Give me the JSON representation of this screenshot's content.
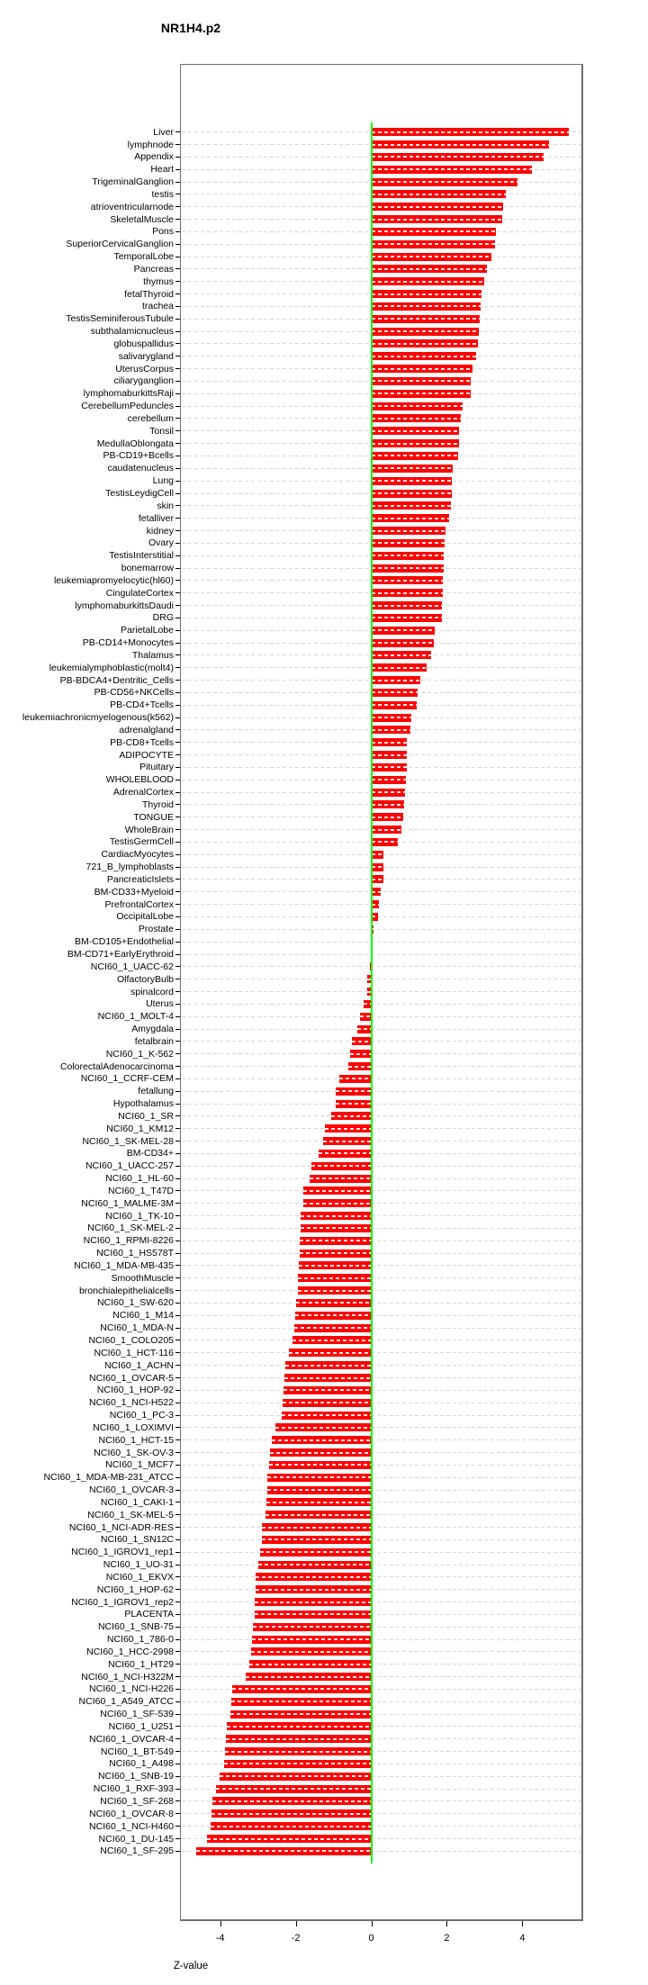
{
  "title": "NR1H4.p2",
  "xlabel": "Z-value",
  "colors": {
    "bar": "#ff0000",
    "zero_line": "#00ff00",
    "grid": "#d7d7d7",
    "box_border": "#6e6e6e"
  },
  "chart_data": {
    "type": "bar",
    "orientation": "horizontal",
    "title": "NR1H4.p2",
    "xlabel": "Z-value",
    "xlim": [
      -5.05,
      5.6
    ],
    "x_tick_values": [
      -4,
      -2,
      0,
      2,
      4
    ],
    "x_tick_labels": [
      "-4",
      "-2",
      "0",
      "2",
      "4"
    ],
    "grid": "dashed-horizontal-per-row",
    "legend": "none",
    "bar_color": "#ff0000",
    "zero_line_color": "#00ff00",
    "categories": [
      "Liver",
      "lymphnode",
      "Appendix",
      "Heart",
      "TrigeminalGanglion",
      "testis",
      "atrioventricularnode",
      "SkeletalMuscle",
      "Pons",
      "SuperiorCervicalGanglion",
      "TemporalLobe",
      "Pancreas",
      "thymus",
      "fetalThyroid",
      "trachea",
      "TestisSeminiferousTubule",
      "subthalamicnucleus",
      "globuspallidus",
      "salivarygland",
      "UterusCorpus",
      "ciliaryganglion",
      "lymphomaburkittsRaji",
      "CerebellumPeduncles",
      "cerebellum",
      "Tonsil",
      "MedullaOblongata",
      "PB-CD19+Bcells",
      "caudatenucleus",
      "Lung",
      "TestisLeydigCell",
      "skin",
      "fetalliver",
      "kidney",
      "Ovary",
      "TestisInterstitial",
      "bonemarrow",
      "leukemiapromyelocytic(hl60)",
      "CingulateCortex",
      "lymphomaburkittsDaudi",
      "DRG",
      "ParietalLobe",
      "PB-CD14+Monocytes",
      "Thalamus",
      "leukemialymphoblastic(molt4)",
      "PB-BDCA4+Dentritic_Cells",
      "PB-CD56+NKCells",
      "PB-CD4+Tcells",
      "leukemiachronicmyelogenous(k562)",
      "adrenalgland",
      "PB-CD8+Tcells",
      "ADIPOCYTE",
      "Pituitary",
      "WHOLEBLOOD",
      "AdrenalCortex",
      "Thyroid",
      "TONGUE",
      "WholeBrain",
      "TestisGermCell",
      "CardiacMyocytes",
      "721_B_lymphoblasts",
      "PancreaticIslets",
      "BM-CD33+Myeloid",
      "PrefrontalCortex",
      "OccipitalLobe",
      "Prostate",
      "BM-CD105+Endothelial",
      "BM-CD71+EarlyErythroid",
      "NCI60_1_UACC-62",
      "OlfactoryBulb",
      "spinalcord",
      "Uterus",
      "NCI60_1_MOLT-4",
      "Amygdala",
      "fetalbrain",
      "NCI60_1_K-562",
      "ColorectalAdenocarcinoma",
      "NCI60_1_CCRF-CEM",
      "fetallung",
      "Hypothalamus",
      "NCI60_1_SR",
      "NCI60_1_KM12",
      "NCI60_1_SK-MEL-28",
      "BM-CD34+",
      "NCI60_1_UACC-257",
      "NCI60_1_HL-60",
      "NCI60_1_T47D",
      "NCI60_1_MALME-3M",
      "NCI60_1_TK-10",
      "NCI60_1_SK-MEL-2",
      "NCI60_1_RPMI-8226",
      "NCI60_1_HS578T",
      "NCI60_1_MDA-MB-435",
      "SmoothMuscle",
      "bronchialepithelialcells",
      "NCI60_1_SW-620",
      "NCI60_1_M14",
      "NCI60_1_MDA-N",
      "NCI60_1_COLO205",
      "NCI60_1_HCT-116",
      "NCI60_1_ACHN",
      "NCI60_1_OVCAR-5",
      "NCI60_1_HOP-92",
      "NCI60_1_NCI-H522",
      "NCI60_1_PC-3",
      "NCI60_1_LOXIMVI",
      "NCI60_1_HCT-15",
      "NCI60_1_SK-OV-3",
      "NCI60_1_MCF7",
      "NCI60_1_MDA-MB-231_ATCC",
      "NCI60_1_OVCAR-3",
      "NCI60_1_CAKI-1",
      "NCI60_1_SK-MEL-5",
      "NCI60_1_NCI-ADR-RES",
      "NCI60_1_SN12C",
      "NCI60_1_IGROV1_rep1",
      "NCI60_1_UO-31",
      "NCI60_1_EKVX",
      "NCI60_1_HOP-62",
      "NCI60_1_IGROV1_rep2",
      "PLACENTA",
      "NCI60_1_SNB-75",
      "NCI60_1_786-0",
      "NCI60_1_HCC-2998",
      "NCI60_1_HT29",
      "NCI60_1_NCI-H322M",
      "NCI60_1_NCI-H226",
      "NCI60_1_A549_ATCC",
      "NCI60_1_SF-539",
      "NCI60_1_U251",
      "NCI60_1_OVCAR-4",
      "NCI60_1_BT-549",
      "NCI60_1_A498",
      "NCI60_1_SNB-19",
      "NCI60_1_RXF-393",
      "NCI60_1_SF-268",
      "NCI60_1_OVCAR-8",
      "NCI60_1_NCI-H460",
      "NCI60_1_DU-145",
      "NCI60_1_SF-295"
    ],
    "values": [
      5.23,
      4.71,
      4.56,
      4.25,
      3.87,
      3.57,
      3.48,
      3.47,
      3.31,
      3.28,
      3.19,
      3.05,
      2.99,
      2.93,
      2.9,
      2.86,
      2.84,
      2.83,
      2.78,
      2.67,
      2.64,
      2.63,
      2.41,
      2.37,
      2.33,
      2.32,
      2.31,
      2.15,
      2.14,
      2.13,
      2.11,
      2.05,
      1.97,
      1.94,
      1.92,
      1.91,
      1.9,
      1.89,
      1.87,
      1.86,
      1.67,
      1.65,
      1.59,
      1.46,
      1.3,
      1.23,
      1.21,
      1.06,
      1.04,
      0.95,
      0.94,
      0.93,
      0.92,
      0.89,
      0.86,
      0.84,
      0.8,
      0.71,
      0.33,
      0.33,
      0.31,
      0.25,
      0.21,
      0.18,
      0.05,
      0.02,
      -0.01,
      -0.04,
      -0.1,
      -0.11,
      -0.21,
      -0.29,
      -0.36,
      -0.51,
      -0.56,
      -0.61,
      -0.85,
      -0.94,
      -0.95,
      -1.05,
      -1.23,
      -1.28,
      -1.4,
      -1.58,
      -1.64,
      -1.79,
      -1.8,
      -1.87,
      -1.88,
      -1.89,
      -1.9,
      -1.92,
      -1.94,
      -1.95,
      -1.98,
      -2.02,
      -2.04,
      -2.08,
      -2.17,
      -2.27,
      -2.3,
      -2.33,
      -2.35,
      -2.38,
      -2.54,
      -2.64,
      -2.67,
      -2.71,
      -2.75,
      -2.76,
      -2.78,
      -2.81,
      -2.89,
      -2.9,
      -2.94,
      -2.98,
      -3.05,
      -3.06,
      -3.08,
      -3.09,
      -3.14,
      -3.15,
      -3.18,
      -3.22,
      -3.33,
      -3.67,
      -3.71,
      -3.73,
      -3.82,
      -3.84,
      -3.86,
      -3.9,
      -4.01,
      -4.1,
      -4.21,
      -4.24,
      -4.25,
      -4.35,
      -4.64
    ]
  }
}
